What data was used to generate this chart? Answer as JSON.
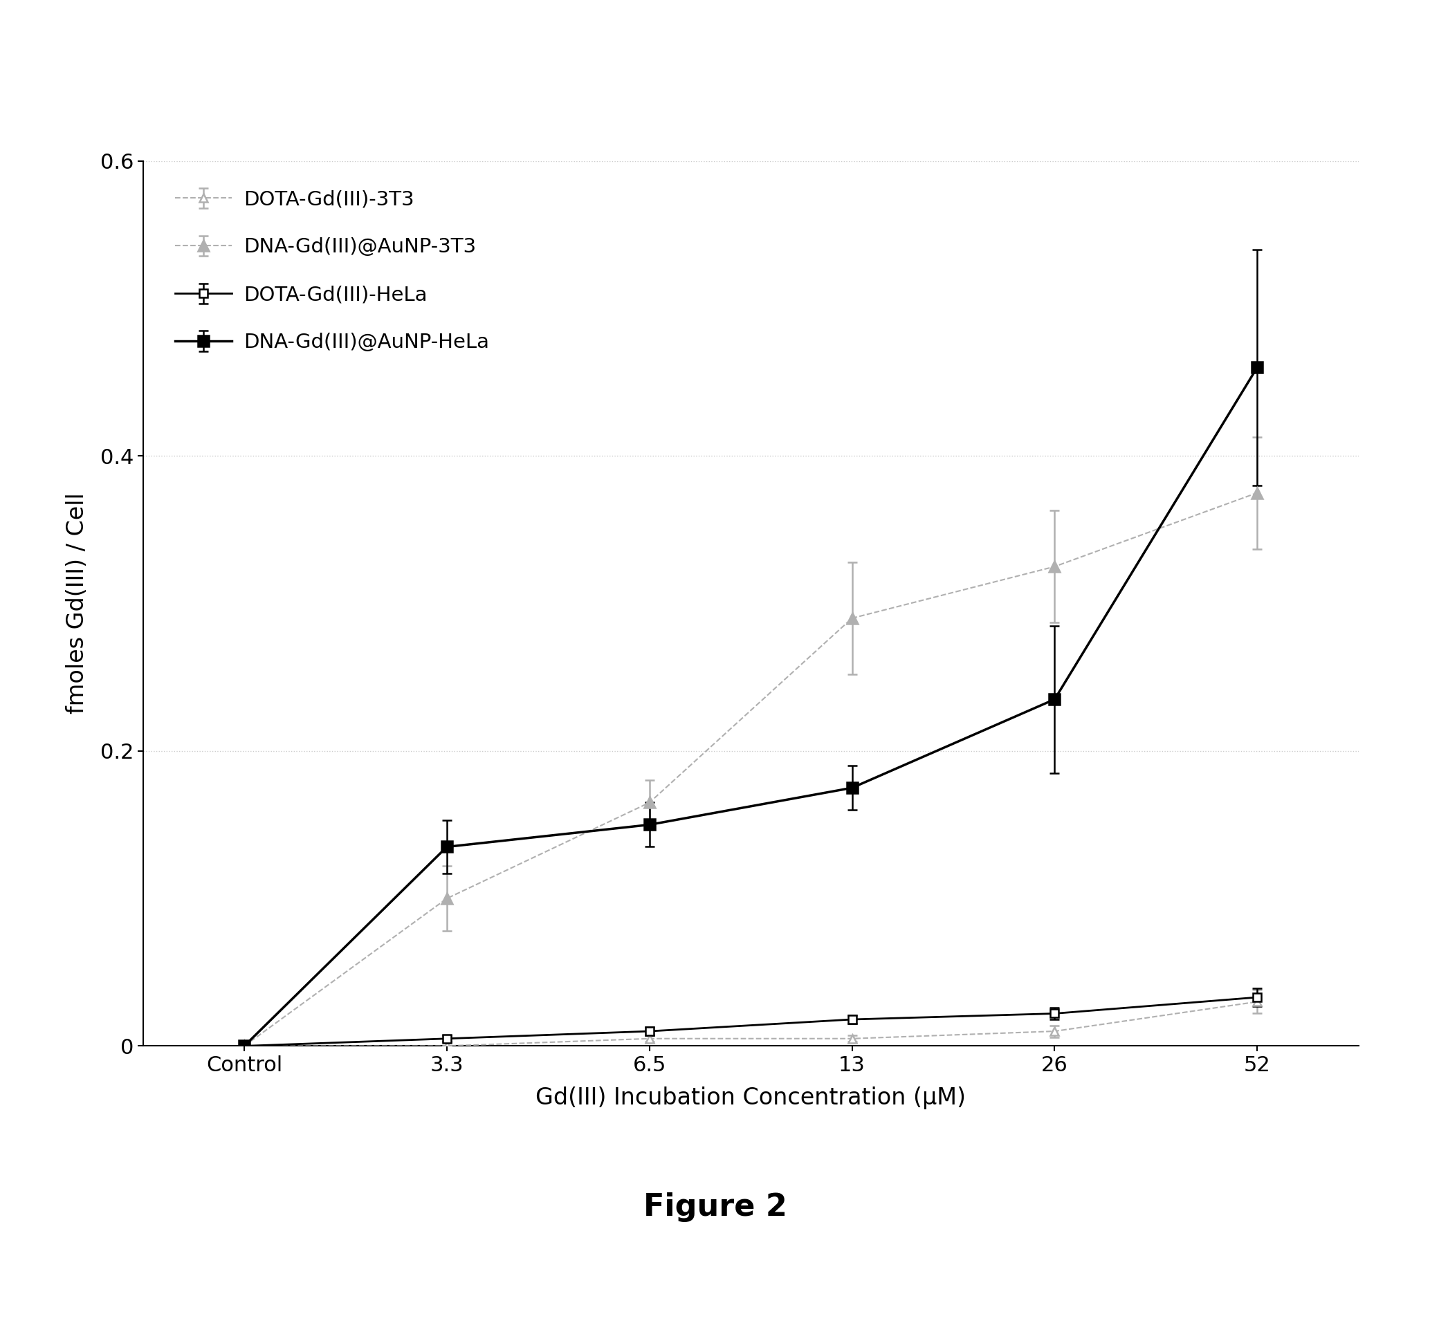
{
  "x_labels": [
    "Control",
    "3.3",
    "6.5",
    "13",
    "26",
    "52"
  ],
  "x_values": [
    0,
    1,
    2,
    3,
    4,
    5
  ],
  "series_order": [
    "DOTA-Gd(III)-3T3",
    "DNA-Gd(III)@AuNP-3T3",
    "DOTA-Gd(III)-HeLa",
    "DNA-Gd(III)@AuNP-HeLa"
  ],
  "series": {
    "DOTA-Gd(III)-3T3": {
      "y": [
        0.0,
        0.0,
        0.005,
        0.005,
        0.01,
        0.03
      ],
      "yerr": [
        0.0,
        0.0,
        0.002,
        0.002,
        0.004,
        0.008
      ],
      "color": "#b0b0b0",
      "linestyle": "--",
      "marker": "^",
      "markersize": 9,
      "linewidth": 1.5,
      "filled": false,
      "label": "DOTA-Gd(III)-3T3"
    },
    "DNA-Gd(III)@AuNP-3T3": {
      "y": [
        0.0,
        0.1,
        0.165,
        0.29,
        0.325,
        0.375
      ],
      "yerr": [
        0.0,
        0.022,
        0.015,
        0.038,
        0.038,
        0.038
      ],
      "color": "#b0b0b0",
      "linestyle": "--",
      "marker": "^",
      "markersize": 11,
      "linewidth": 1.5,
      "filled": true,
      "label": "DNA-Gd(III)@AuNP-3T3"
    },
    "DOTA-Gd(III)-HeLa": {
      "y": [
        0.0,
        0.005,
        0.01,
        0.018,
        0.022,
        0.033
      ],
      "yerr": [
        0.0,
        0.002,
        0.003,
        0.003,
        0.004,
        0.006
      ],
      "color": "#000000",
      "linestyle": "-",
      "marker": "s",
      "markersize": 9,
      "linewidth": 2.0,
      "filled": false,
      "label": "DOTA-Gd(III)-HeLa"
    },
    "DNA-Gd(III)@AuNP-HeLa": {
      "y": [
        0.0,
        0.135,
        0.15,
        0.175,
        0.235,
        0.46
      ],
      "yerr": [
        0.0,
        0.018,
        0.015,
        0.015,
        0.05,
        0.08
      ],
      "color": "#000000",
      "linestyle": "-",
      "marker": "s",
      "markersize": 11,
      "linewidth": 2.5,
      "filled": true,
      "label": "DNA-Gd(III)@AuNP-HeLa"
    }
  },
  "xlabel": "Gd(III) Incubation Concentration (μM)",
  "ylabel": "fmoles Gd(III) / Cell",
  "ylim": [
    0.0,
    0.6
  ],
  "yticks": [
    0.0,
    0.2,
    0.4,
    0.6
  ],
  "ytick_labels": [
    "0",
    "0.2",
    "0.4",
    "0.6"
  ],
  "figure_label": "Figure 2",
  "background_color": "#ffffff",
  "grid_color": "#cccccc",
  "grid_linestyle": ":",
  "grid_linewidth": 1.0
}
